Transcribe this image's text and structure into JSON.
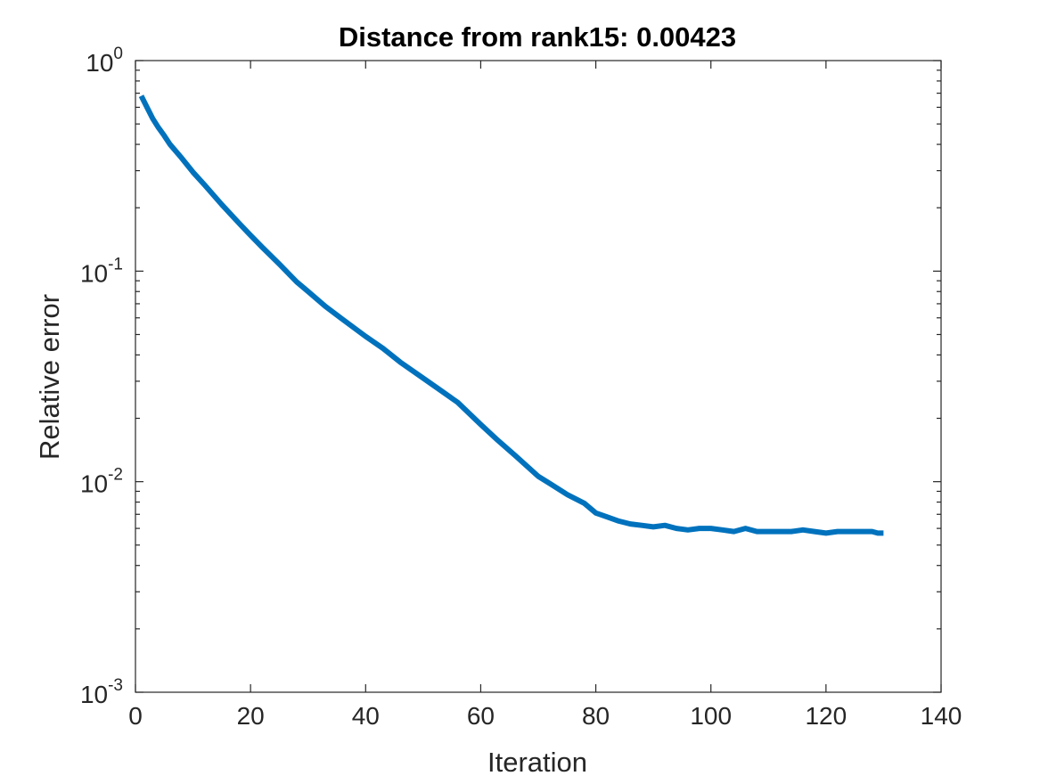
{
  "chart_data": {
    "type": "line",
    "title": "Distance from rank15: 0.00423",
    "xlabel": "Iteration",
    "ylabel": "Relative error",
    "xlim": [
      0,
      140
    ],
    "ylim": [
      0.001,
      1
    ],
    "yscale": "log",
    "grid": false,
    "x_ticks": [
      0,
      20,
      40,
      60,
      80,
      100,
      120,
      140
    ],
    "x_tick_labels": [
      "0",
      "20",
      "40",
      "60",
      "80",
      "100",
      "120",
      "140"
    ],
    "y_ticks": [
      1,
      0.1,
      0.01,
      0.001
    ],
    "y_tick_labels": [
      {
        "base": "10",
        "exp": "0"
      },
      {
        "base": "10",
        "exp": "-1"
      },
      {
        "base": "10",
        "exp": "-2"
      },
      {
        "base": "10",
        "exp": "-3"
      }
    ],
    "series": [
      {
        "color": "#0072bd",
        "x": [
          1,
          2,
          3,
          4,
          5,
          6,
          8,
          10,
          12,
          15,
          18,
          20,
          22,
          25,
          28,
          30,
          33,
          36,
          40,
          43,
          46,
          50,
          53,
          56,
          60,
          63,
          66,
          70,
          72,
          75,
          78,
          80,
          82,
          84,
          86,
          88,
          90,
          92,
          94,
          96,
          98,
          100,
          102,
          104,
          106,
          108,
          110,
          112,
          114,
          116,
          118,
          120,
          122,
          124,
          126,
          128,
          129,
          130
        ],
        "y": [
          0.68,
          0.6,
          0.53,
          0.48,
          0.44,
          0.4,
          0.345,
          0.295,
          0.257,
          0.207,
          0.169,
          0.148,
          0.13,
          0.108,
          0.089,
          0.08,
          0.068,
          0.059,
          0.049,
          0.043,
          0.037,
          0.031,
          0.0272,
          0.0238,
          0.0187,
          0.0157,
          0.0133,
          0.0106,
          0.0098,
          0.0087,
          0.0079,
          0.0071,
          0.0068,
          0.0065,
          0.0063,
          0.0062,
          0.0061,
          0.0062,
          0.006,
          0.0059,
          0.006,
          0.006,
          0.0059,
          0.0058,
          0.006,
          0.0058,
          0.0058,
          0.0058,
          0.0058,
          0.0059,
          0.0058,
          0.0057,
          0.0058,
          0.0058,
          0.0058,
          0.0058,
          0.0057,
          0.0057
        ]
      }
    ]
  }
}
